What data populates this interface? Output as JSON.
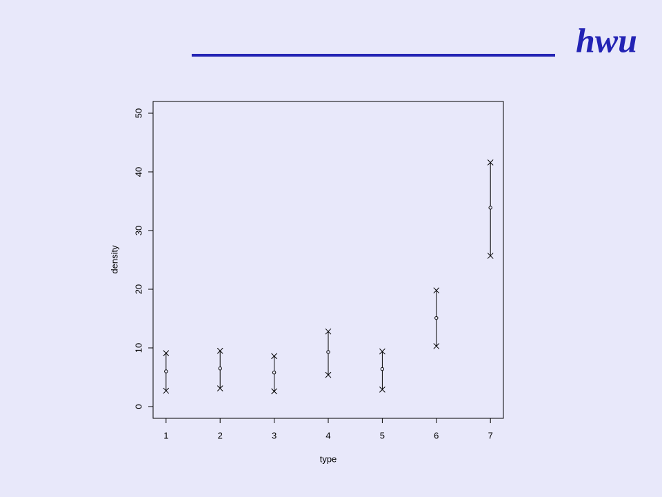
{
  "header": {
    "logo": "hwu"
  },
  "chart_data": {
    "type": "interval",
    "x_label": "type",
    "y_label": "density",
    "x": [
      1,
      2,
      3,
      4,
      5,
      6,
      7
    ],
    "values": [
      6.0,
      6.5,
      5.8,
      9.3,
      6.4,
      15.1,
      33.9
    ],
    "lower": [
      2.7,
      3.1,
      2.6,
      5.4,
      2.9,
      10.3,
      25.7
    ],
    "upper": [
      9.1,
      9.5,
      8.6,
      12.8,
      9.4,
      19.8,
      41.6
    ],
    "color": "#000000",
    "xlim": [
      0.76,
      7.24
    ],
    "xticks": [
      1,
      2,
      3,
      4,
      5,
      6,
      7
    ],
    "ylim": [
      -2,
      52
    ],
    "yticks": [
      0,
      10,
      20,
      30,
      40,
      50
    ]
  }
}
